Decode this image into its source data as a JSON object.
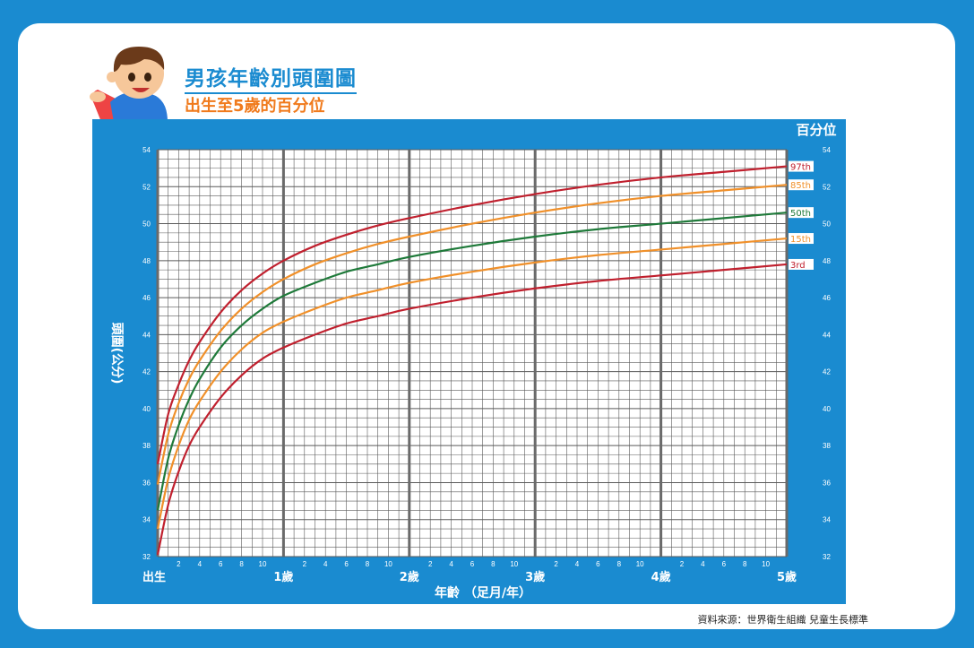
{
  "header": {
    "title": "男孩年齡別頭圍圖",
    "subtitle": "出生至5歲的百分位"
  },
  "source_note": "資料來源：世界衛生組織 兒童生長標準",
  "colors": {
    "background": "#1a8bd0",
    "panel": "#1a8bd0",
    "grid": "#5a5a5a",
    "grid_major": "#6a6a6a",
    "red": "#c0202e",
    "orange": "#f0902a",
    "green": "#1f7a3a"
  },
  "chart_data": {
    "type": "line",
    "title": "男孩年齡別頭圍圖",
    "subtitle": "出生至5歲的百分位",
    "xlabel": "年齡 （足月/年）",
    "ylabel": "頭圍(公分)",
    "right_axis_title": "百分位",
    "xlim": [
      0,
      60
    ],
    "ylim": [
      32,
      54
    ],
    "grid": true,
    "yticks": [
      32,
      34,
      36,
      38,
      40,
      42,
      44,
      46,
      48,
      50,
      52,
      54
    ],
    "month_tick_labels": [
      "2",
      "4",
      "6",
      "8",
      "10"
    ],
    "year_labels": [
      {
        "month": 0,
        "label": "出生"
      },
      {
        "month": 12,
        "label": "1歲"
      },
      {
        "month": 24,
        "label": "2歲"
      },
      {
        "month": 36,
        "label": "3歲"
      },
      {
        "month": 48,
        "label": "4歲"
      },
      {
        "month": 60,
        "label": "5歲"
      }
    ],
    "x": [
      0,
      1,
      2,
      3,
      4,
      6,
      8,
      10,
      12,
      15,
      18,
      21,
      24,
      30,
      36,
      42,
      48,
      54,
      60
    ],
    "series": [
      {
        "name": "97th",
        "color": "#c0202e",
        "values": [
          37.0,
          39.7,
          41.3,
          42.6,
          43.6,
          45.2,
          46.4,
          47.3,
          48.0,
          48.8,
          49.4,
          49.9,
          50.3,
          51.0,
          51.6,
          52.1,
          52.5,
          52.8,
          53.1
        ]
      },
      {
        "name": "85th",
        "color": "#f0902a",
        "values": [
          35.9,
          38.6,
          40.3,
          41.6,
          42.6,
          44.2,
          45.4,
          46.3,
          47.0,
          47.8,
          48.4,
          48.9,
          49.3,
          50.0,
          50.6,
          51.1,
          51.5,
          51.8,
          52.1
        ]
      },
      {
        "name": "50th",
        "color": "#1f7a3a",
        "values": [
          34.5,
          37.3,
          39.1,
          40.5,
          41.6,
          43.3,
          44.5,
          45.4,
          46.1,
          46.8,
          47.4,
          47.8,
          48.2,
          48.8,
          49.3,
          49.7,
          50.0,
          50.3,
          50.6
        ]
      },
      {
        "name": "15th",
        "color": "#f0902a",
        "values": [
          33.5,
          36.2,
          38.0,
          39.4,
          40.4,
          42.0,
          43.2,
          44.1,
          44.7,
          45.4,
          46.0,
          46.4,
          46.8,
          47.4,
          47.9,
          48.3,
          48.6,
          48.9,
          49.2
        ]
      },
      {
        "name": "3rd",
        "color": "#c0202e",
        "values": [
          32.1,
          34.8,
          36.6,
          38.0,
          39.0,
          40.6,
          41.8,
          42.7,
          43.3,
          44.0,
          44.6,
          45.0,
          45.4,
          46.0,
          46.5,
          46.9,
          47.2,
          47.5,
          47.8
        ]
      }
    ]
  }
}
